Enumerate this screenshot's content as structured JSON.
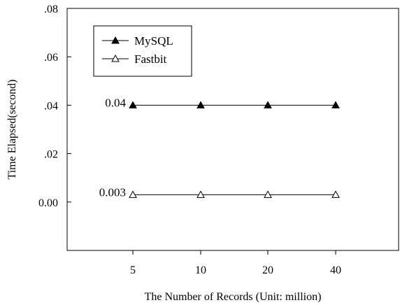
{
  "chart_data": {
    "type": "line",
    "title": "",
    "xlabel": "The Number of  Records (Unit: million)",
    "ylabel": "Time Elapsed(second)",
    "categories": [
      "5",
      "10",
      "20",
      "40"
    ],
    "ylim": [
      -0.02,
      0.08
    ],
    "yticks": [
      ".08",
      ".06",
      ".04",
      ".02",
      "0.00"
    ],
    "ytick_values": [
      0.08,
      0.06,
      0.04,
      0.02,
      0.0
    ],
    "grid": false,
    "legend_position": "top-left",
    "series": [
      {
        "name": "MySQL",
        "values": [
          0.04,
          0.04,
          0.04,
          0.04
        ],
        "marker": "filled-triangle",
        "color": "#000000"
      },
      {
        "name": "Fastbit",
        "values": [
          0.003,
          0.003,
          0.003,
          0.003
        ],
        "marker": "hollow-triangle",
        "color": "#000000"
      }
    ],
    "annotations": [
      {
        "text": "0.04",
        "series": 0,
        "category": 0
      },
      {
        "text": "0.003",
        "series": 1,
        "category": 0
      }
    ]
  }
}
